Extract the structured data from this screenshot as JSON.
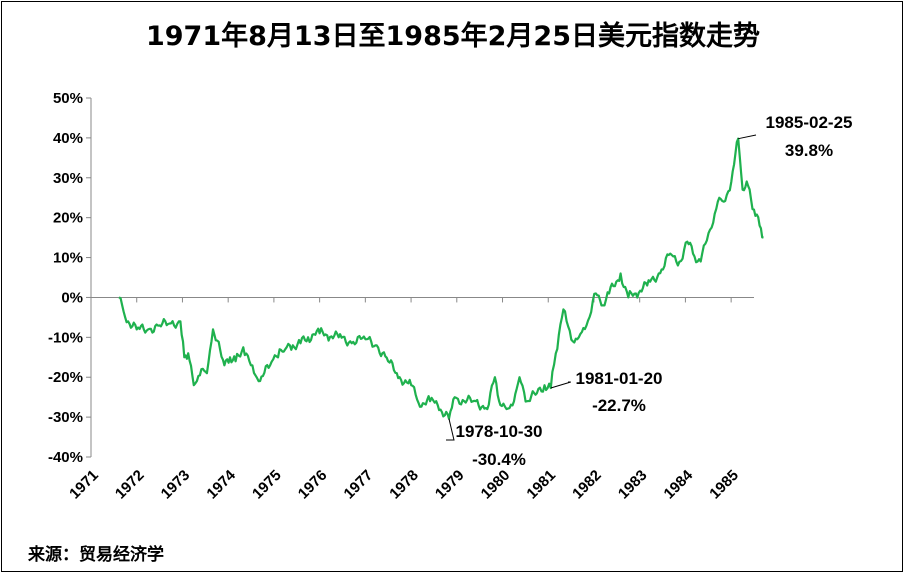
{
  "chart_data": {
    "type": "line",
    "title": "1971年8月13日至1985年2月25日美元指数走势",
    "source": "来源：贸易经济学",
    "ylabel": "",
    "xlabel": "",
    "ylim": [
      -40,
      50
    ],
    "y_ticks": [
      "50%",
      "40%",
      "30%",
      "20%",
      "10%",
      "0%",
      "-10%",
      "-20%",
      "-30%",
      "-40%"
    ],
    "x_ticks": [
      "1971",
      "1972",
      "1973",
      "1974",
      "1975",
      "1976",
      "1977",
      "1978",
      "1979",
      "1980",
      "1981",
      "1982",
      "1983",
      "1984",
      "1985"
    ],
    "grid": false,
    "series": [
      {
        "color": "#1fb14e",
        "x": [
          "1971-08-13",
          "1971-10-01",
          "1972-01-01",
          "1972-04-01",
          "1972-07-01",
          "1972-10-01",
          "1972-12-15",
          "1973-01-15",
          "1973-02-15",
          "1973-04-01",
          "1973-06-01",
          "1973-07-15",
          "1973-09-01",
          "1973-12-01",
          "1974-01-15",
          "1974-03-01",
          "1974-05-01",
          "1974-07-01",
          "1974-09-01",
          "1974-12-01",
          "1975-02-15",
          "1975-04-01",
          "1975-06-01",
          "1975-08-01",
          "1975-10-01",
          "1976-01-01",
          "1976-03-01",
          "1976-06-01",
          "1976-09-01",
          "1977-01-01",
          "1977-04-01",
          "1977-07-01",
          "1977-10-01",
          "1978-01-01",
          "1978-03-01",
          "1978-06-01",
          "1978-08-01",
          "1978-10-30",
          "1978-12-15",
          "1979-03-01",
          "1979-06-01",
          "1979-09-01",
          "1979-11-01",
          "1979-12-15",
          "1980-02-01",
          "1980-04-01",
          "1980-05-15",
          "1980-07-15",
          "1980-10-01",
          "1980-12-01",
          "1981-01-20",
          "1981-03-01",
          "1981-05-01",
          "1981-07-15",
          "1981-09-01",
          "1981-11-01",
          "1982-01-15",
          "1982-03-01",
          "1982-05-01",
          "1982-08-01",
          "1982-10-01",
          "1982-12-01",
          "1983-03-01",
          "1983-06-01",
          "1983-09-01",
          "1983-11-01",
          "1984-01-15",
          "1984-03-01",
          "1984-05-01",
          "1984-07-15",
          "1984-09-15",
          "1984-11-01",
          "1985-01-01",
          "1985-02-25",
          "1985-04-01",
          "1985-05-15",
          "1985-07-01",
          "1985-08-15",
          "1985-09-15"
        ],
        "y": [
          0,
          -5,
          -8,
          -8,
          -7,
          -6.5,
          -6,
          -15,
          -14,
          -22,
          -18,
          -19,
          -8,
          -17,
          -15,
          -16,
          -12.5,
          -17,
          -21,
          -17,
          -13,
          -13,
          -12,
          -11.5,
          -10,
          -9,
          -9.5,
          -10,
          -11,
          -10.5,
          -12,
          -16,
          -20,
          -22,
          -26.5,
          -26,
          -27,
          -30.4,
          -25,
          -26,
          -26,
          -28,
          -20,
          -27,
          -28,
          -26,
          -20,
          -26,
          -24,
          -22,
          -22.7,
          -14,
          -3,
          -11,
          -10,
          -7,
          1,
          -2,
          1,
          6,
          0,
          1,
          3,
          6,
          11,
          8,
          14,
          11,
          9,
          17,
          24,
          24,
          29,
          39.8,
          27,
          28,
          22,
          18,
          15
        ]
      }
    ],
    "annotations": [
      {
        "date": "1985-02-25",
        "label_date": "1985-02-25",
        "label_value": "39.8%"
      },
      {
        "date": "1981-01-20",
        "label_date": "1981-01-20",
        "label_value": "-22.7%"
      },
      {
        "date": "1978-10-30",
        "label_date": "1978-10-30",
        "label_value": "-30.4%"
      }
    ]
  }
}
